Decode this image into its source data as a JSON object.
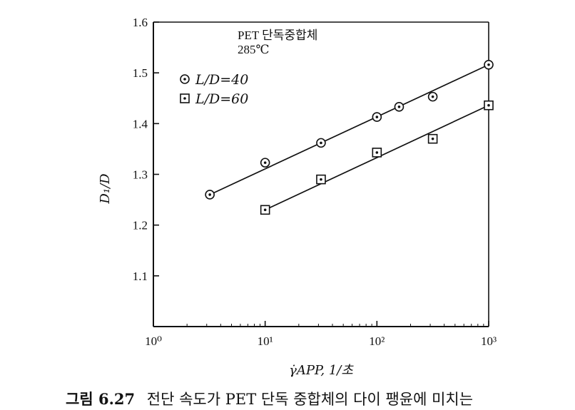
{
  "caption": {
    "figure_no": "그림 6.27",
    "text": "전단 속도가 PET 단독 중합체의 다이 팽윤에 미치는"
  },
  "top_cut_text": "",
  "chart_data": {
    "type": "scatter",
    "title": "",
    "annotation": [
      "PET 단독중합체",
      "285℃"
    ],
    "xlabel": "γ̇APP, 1/초",
    "ylabel": "D₁/D",
    "x_scale": "log",
    "xlim": [
      1,
      1000
    ],
    "ylim": [
      1.0,
      1.6
    ],
    "x_ticks": [
      1,
      10,
      100,
      1000
    ],
    "x_tick_labels": [
      "10⁰",
      "10¹",
      "10²",
      "10³"
    ],
    "y_ticks": [
      1.1,
      1.2,
      1.3,
      1.4,
      1.5,
      1.6
    ],
    "y_tick_labels": [
      "1.1",
      "1.2",
      "1.3",
      "1.4",
      "1.5",
      "1.6"
    ],
    "grid": false,
    "legend_position": "top-left",
    "series": [
      {
        "name": "L/D=40",
        "marker": "circle-dot",
        "x": [
          3.2,
          10,
          31.6,
          100,
          158,
          316,
          1000
        ],
        "y": [
          1.26,
          1.323,
          1.362,
          1.413,
          1.433,
          1.453,
          1.516
        ],
        "fit": [
          [
            3.2,
            1.26
          ],
          [
            1000,
            1.516
          ]
        ]
      },
      {
        "name": "L/D=60",
        "marker": "square-dot",
        "x": [
          10,
          31.6,
          100,
          316,
          1000
        ],
        "y": [
          1.23,
          1.29,
          1.343,
          1.37,
          1.436
        ],
        "fit": [
          [
            10,
            1.23
          ],
          [
            1000,
            1.436
          ]
        ]
      }
    ]
  }
}
